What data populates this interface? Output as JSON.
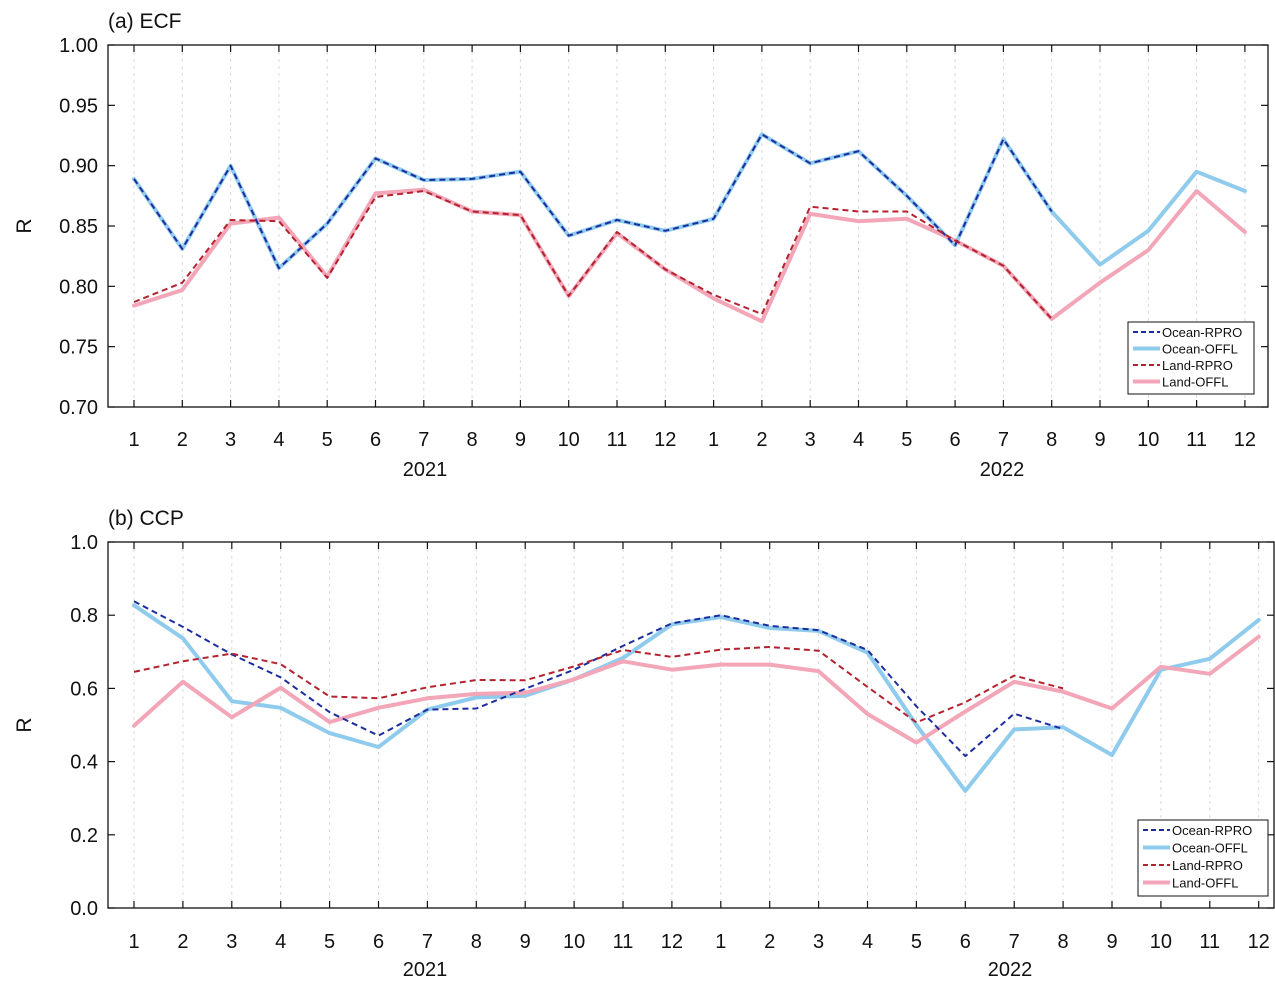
{
  "chart_data": [
    {
      "type": "line",
      "title": "(a) ECF",
      "ylabel": "R",
      "ylim": [
        0.7,
        1.0
      ],
      "yticks": [
        "0.70",
        "0.75",
        "0.80",
        "0.85",
        "0.90",
        "0.95",
        "1.00"
      ],
      "x": [
        "1",
        "2",
        "3",
        "4",
        "5",
        "6",
        "7",
        "8",
        "9",
        "10",
        "11",
        "12",
        "1",
        "2",
        "3",
        "4",
        "5",
        "6",
        "7",
        "8",
        "9",
        "10",
        "11",
        "12"
      ],
      "year_labels": [
        "2021",
        "2022"
      ],
      "legend_placement": "bottom-right",
      "series": [
        {
          "name": "Ocean-OFFL",
          "color": "#8fcbed",
          "style": "solid",
          "width": 4,
          "values": [
            0.889,
            0.831,
            0.9,
            0.815,
            0.852,
            0.906,
            0.888,
            0.889,
            0.895,
            0.842,
            0.855,
            0.846,
            0.856,
            0.926,
            0.902,
            0.912,
            0.875,
            0.834,
            0.922,
            0.862,
            0.818,
            0.846,
            0.895,
            0.879
          ]
        },
        {
          "name": "Land-OFFL",
          "color": "#f2a6b8",
          "style": "solid",
          "width": 4,
          "values": [
            0.784,
            0.797,
            0.852,
            0.857,
            0.808,
            0.877,
            0.88,
            0.862,
            0.859,
            0.792,
            0.844,
            0.814,
            0.79,
            0.771,
            0.86,
            0.854,
            0.856,
            0.838,
            0.817,
            0.773,
            0.803,
            0.83,
            0.879,
            0.845
          ]
        },
        {
          "name": "Ocean-RPRO",
          "color": "#1c2d9e",
          "style": "dashed",
          "width": 2,
          "values": [
            0.889,
            0.831,
            0.9,
            0.815,
            0.852,
            0.906,
            0.888,
            0.889,
            0.895,
            0.842,
            0.855,
            0.846,
            0.856,
            0.926,
            0.902,
            0.912,
            0.875,
            0.834,
            0.922,
            0.862,
            null,
            null,
            null,
            null
          ]
        },
        {
          "name": "Land-RPRO",
          "color": "#b3222e",
          "style": "dashed",
          "width": 2,
          "values": [
            0.787,
            0.803,
            0.855,
            0.854,
            0.807,
            0.874,
            0.879,
            0.862,
            0.859,
            0.792,
            0.845,
            0.814,
            0.793,
            0.777,
            0.866,
            0.862,
            0.862,
            0.838,
            0.817,
            0.773,
            null,
            null,
            null,
            null
          ]
        }
      ],
      "legend_order": [
        "Ocean-RPRO",
        "Ocean-OFFL",
        "Land-RPRO",
        "Land-OFFL"
      ]
    },
    {
      "type": "line",
      "title": "(b) CCP",
      "ylabel": "R",
      "ylim": [
        0.0,
        1.0
      ],
      "yticks": [
        "0.0",
        "0.2",
        "0.4",
        "0.6",
        "0.8",
        "1.0"
      ],
      "x": [
        "1",
        "2",
        "3",
        "4",
        "5",
        "6",
        "7",
        "8",
        "9",
        "10",
        "11",
        "12",
        "1",
        "2",
        "3",
        "4",
        "5",
        "6",
        "7",
        "8",
        "9",
        "10",
        "11",
        "12"
      ],
      "year_labels": [
        "2021",
        "2022"
      ],
      "legend_placement": "bottom-right",
      "series": [
        {
          "name": "Ocean-OFFL",
          "color": "#8fcbed",
          "style": "solid",
          "width": 4,
          "values": [
            0.827,
            0.737,
            0.565,
            0.547,
            0.478,
            0.44,
            0.542,
            0.575,
            0.58,
            0.625,
            0.683,
            0.775,
            0.795,
            0.765,
            0.757,
            0.698,
            0.5,
            0.32,
            0.488,
            0.494,
            0.418,
            0.651,
            0.681,
            0.787
          ]
        },
        {
          "name": "Land-OFFL",
          "color": "#f2a6b8",
          "style": "solid",
          "width": 4,
          "values": [
            0.498,
            0.618,
            0.521,
            0.602,
            0.508,
            0.547,
            0.573,
            0.585,
            0.588,
            0.625,
            0.674,
            0.651,
            0.665,
            0.665,
            0.647,
            0.53,
            0.452,
            0.537,
            0.618,
            0.591,
            0.545,
            0.659,
            0.64,
            0.741
          ]
        },
        {
          "name": "Ocean-RPRO",
          "color": "#1c2d9e",
          "style": "dashed",
          "width": 2,
          "values": [
            0.838,
            0.768,
            0.693,
            0.63,
            0.535,
            0.471,
            0.542,
            0.545,
            0.599,
            0.651,
            0.716,
            0.778,
            0.8,
            0.771,
            0.759,
            0.705,
            0.551,
            0.415,
            0.531,
            0.489,
            null,
            null,
            null,
            null
          ]
        },
        {
          "name": "Land-RPRO",
          "color": "#b3222e",
          "style": "dashed",
          "width": 2,
          "values": [
            0.645,
            0.674,
            0.695,
            0.666,
            0.578,
            0.573,
            0.603,
            0.623,
            0.622,
            0.66,
            0.705,
            0.686,
            0.706,
            0.713,
            0.703,
            0.604,
            0.507,
            0.562,
            0.635,
            0.6,
            null,
            null,
            null,
            null
          ]
        }
      ],
      "legend_order": [
        "Ocean-RPRO",
        "Ocean-OFFL",
        "Land-RPRO",
        "Land-OFFL"
      ]
    }
  ]
}
